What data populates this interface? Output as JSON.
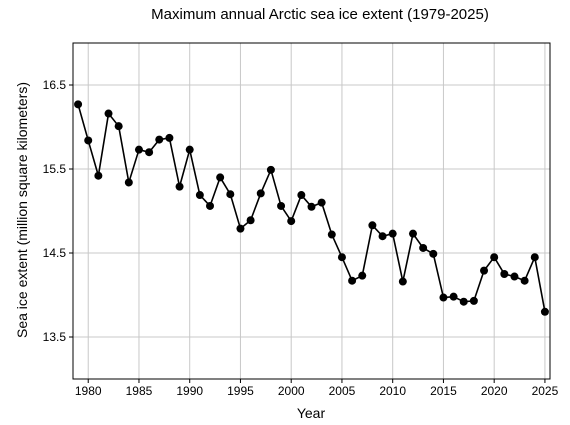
{
  "chart_data": {
    "type": "line",
    "title": "Maximum annual Arctic sea ice extent (1979-2025)",
    "xlabel": "Year",
    "ylabel": "Sea ice extent (million square kilometers)",
    "xlim": [
      1978.5,
      2025.5
    ],
    "ylim": [
      13.0,
      17.0
    ],
    "xticks": [
      1980,
      1985,
      1990,
      1995,
      2000,
      2005,
      2010,
      2015,
      2020,
      2025
    ],
    "yticks": [
      13.5,
      14.5,
      15.5,
      16.5
    ],
    "ytick_labels": [
      "13.5",
      "14.5",
      "15.5",
      "16.5"
    ],
    "grid": true,
    "legend": false,
    "line_color": "#000000",
    "x": [
      1979,
      1980,
      1981,
      1982,
      1983,
      1984,
      1985,
      1986,
      1987,
      1988,
      1989,
      1990,
      1991,
      1992,
      1993,
      1994,
      1995,
      1996,
      1997,
      1998,
      1999,
      2000,
      2001,
      2002,
      2003,
      2004,
      2005,
      2006,
      2007,
      2008,
      2009,
      2010,
      2011,
      2012,
      2013,
      2014,
      2015,
      2016,
      2017,
      2018,
      2019,
      2020,
      2021,
      2022,
      2023,
      2024,
      2025
    ],
    "y": [
      16.27,
      15.84,
      15.42,
      16.16,
      16.01,
      15.34,
      15.73,
      15.7,
      15.85,
      15.87,
      15.29,
      15.73,
      15.19,
      15.06,
      15.4,
      15.2,
      14.79,
      14.89,
      15.21,
      15.49,
      15.06,
      14.88,
      15.19,
      15.05,
      15.1,
      14.72,
      14.45,
      14.17,
      14.23,
      14.83,
      14.7,
      14.73,
      14.16,
      14.73,
      14.56,
      14.49,
      13.97,
      13.98,
      13.92,
      13.93,
      14.29,
      14.45,
      14.25,
      14.22,
      14.17,
      14.45,
      13.8
    ]
  }
}
